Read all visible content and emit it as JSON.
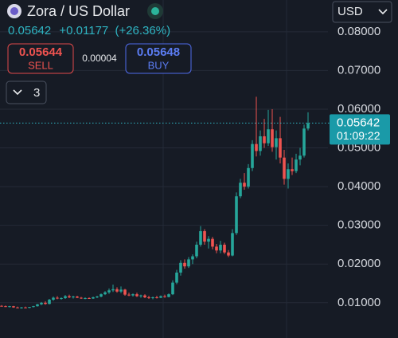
{
  "header": {
    "title": "Zora / US Dollar",
    "currency": "USD",
    "price": "0.05642",
    "change": "+0.01177",
    "change_pct": "(+26.36%)"
  },
  "trade": {
    "sell_price": "0.05644",
    "sell_label": "SELL",
    "spread": "0.00004",
    "buy_price": "0.05648",
    "buy_label": "BUY",
    "interval": "3"
  },
  "chart_data": {
    "type": "candlestick",
    "up_color": "#26a69a",
    "down_color": "#ef5350",
    "grid": true,
    "ylim": [
      0.0009,
      0.0882
    ],
    "yticks": [
      {
        "value": 0.01,
        "label": "0.01000"
      },
      {
        "value": 0.02,
        "label": "0.02000"
      },
      {
        "value": 0.03,
        "label": "0.03000"
      },
      {
        "value": 0.04,
        "label": "0.04000"
      },
      {
        "value": 0.05,
        "label": "0.05000"
      },
      {
        "value": 0.06,
        "label": "0.06000"
      },
      {
        "value": 0.07,
        "label": "0.07000"
      },
      {
        "value": 0.08,
        "label": "0.08000"
      }
    ],
    "last_price": {
      "value": 0.05642,
      "label": "0.05642"
    },
    "countdown": "01:09:22",
    "open": [
      0.0092,
      0.0091,
      0.009,
      0.0091,
      0.0088,
      0.0087,
      0.0088,
      0.0087,
      0.0089,
      0.0091,
      0.0096,
      0.01,
      0.0097,
      0.0108,
      0.0113,
      0.0111,
      0.0112,
      0.0117,
      0.0114,
      0.0116,
      0.0113,
      0.0111,
      0.0112,
      0.0111,
      0.0114,
      0.0116,
      0.0122,
      0.0127,
      0.0132,
      0.0135,
      0.0129,
      0.0134,
      0.0121,
      0.0119,
      0.0122,
      0.0117,
      0.0119,
      0.0114,
      0.0112,
      0.0114,
      0.0113,
      0.0117,
      0.0115,
      0.0122,
      0.0152,
      0.0178,
      0.0203,
      0.0194,
      0.0212,
      0.022,
      0.025,
      0.0285,
      0.0258,
      0.0265,
      0.0245,
      0.0235,
      0.025,
      0.023,
      0.0222,
      0.028,
      0.0375,
      0.041,
      0.04,
      0.0448,
      0.051,
      0.0492,
      0.053,
      0.0512,
      0.0548,
      0.0502,
      0.0525,
      0.0475,
      0.042,
      0.0445,
      0.044,
      0.047,
      0.048,
      0.055
    ],
    "high": [
      0.0094,
      0.0093,
      0.0092,
      0.0092,
      0.009,
      0.0089,
      0.009,
      0.0089,
      0.0092,
      0.0097,
      0.0102,
      0.0104,
      0.011,
      0.0116,
      0.0117,
      0.0114,
      0.012,
      0.0121,
      0.0118,
      0.0118,
      0.0115,
      0.0114,
      0.0114,
      0.0116,
      0.0118,
      0.0124,
      0.013,
      0.0137,
      0.0147,
      0.014,
      0.0142,
      0.0136,
      0.0126,
      0.0124,
      0.0126,
      0.0121,
      0.0122,
      0.0118,
      0.0116,
      0.0118,
      0.0119,
      0.0121,
      0.0124,
      0.0158,
      0.0185,
      0.021,
      0.0212,
      0.0218,
      0.0225,
      0.0258,
      0.0298,
      0.029,
      0.0272,
      0.027,
      0.0252,
      0.026,
      0.0255,
      0.0236,
      0.029,
      0.0385,
      0.042,
      0.0435,
      0.0458,
      0.052,
      0.0632,
      0.0545,
      0.0575,
      0.0598,
      0.06,
      0.0545,
      0.058,
      0.0495,
      0.046,
      0.0475,
      0.0485,
      0.05,
      0.056,
      0.0592
    ],
    "low": [
      0.009,
      0.0089,
      0.0088,
      0.0087,
      0.0086,
      0.0085,
      0.0086,
      0.0086,
      0.0088,
      0.009,
      0.0094,
      0.0095,
      0.0096,
      0.0105,
      0.0109,
      0.0108,
      0.011,
      0.0112,
      0.0111,
      0.0112,
      0.011,
      0.0109,
      0.011,
      0.011,
      0.0112,
      0.0114,
      0.012,
      0.0123,
      0.0128,
      0.0126,
      0.0125,
      0.0118,
      0.0117,
      0.0116,
      0.0115,
      0.0113,
      0.0112,
      0.011,
      0.0109,
      0.0111,
      0.0112,
      0.0113,
      0.0114,
      0.012,
      0.0148,
      0.017,
      0.0188,
      0.019,
      0.02,
      0.0215,
      0.0245,
      0.025,
      0.024,
      0.0238,
      0.0228,
      0.0228,
      0.0226,
      0.0218,
      0.022,
      0.0275,
      0.037,
      0.0392,
      0.0395,
      0.044,
      0.0478,
      0.048,
      0.05,
      0.0505,
      0.049,
      0.047,
      0.046,
      0.0405,
      0.0395,
      0.043,
      0.0435,
      0.0455,
      0.0475,
      0.0545
    ],
    "close": [
      0.0091,
      0.009,
      0.0091,
      0.0088,
      0.0087,
      0.0088,
      0.0087,
      0.0089,
      0.0091,
      0.0096,
      0.01,
      0.0097,
      0.0108,
      0.0113,
      0.0111,
      0.0112,
      0.0117,
      0.0114,
      0.0116,
      0.0113,
      0.0111,
      0.0112,
      0.0111,
      0.0114,
      0.0116,
      0.0122,
      0.0127,
      0.0132,
      0.0135,
      0.0129,
      0.0134,
      0.0121,
      0.0119,
      0.0122,
      0.0117,
      0.0119,
      0.0114,
      0.0112,
      0.0114,
      0.0113,
      0.0117,
      0.0115,
      0.0122,
      0.0152,
      0.0178,
      0.0203,
      0.0194,
      0.0212,
      0.022,
      0.025,
      0.0285,
      0.0258,
      0.0265,
      0.0245,
      0.0235,
      0.025,
      0.023,
      0.0222,
      0.028,
      0.0375,
      0.041,
      0.04,
      0.0448,
      0.051,
      0.0492,
      0.053,
      0.0512,
      0.0548,
      0.0502,
      0.0525,
      0.0475,
      0.042,
      0.0445,
      0.044,
      0.047,
      0.048,
      0.055,
      0.0564
    ]
  }
}
